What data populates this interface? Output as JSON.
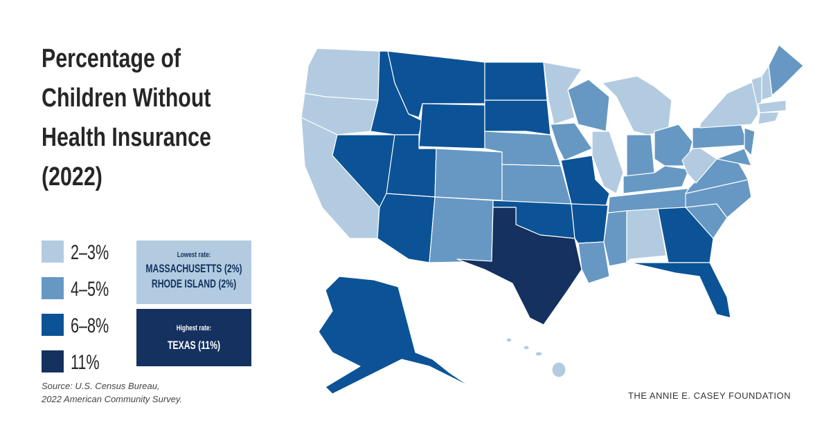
{
  "title_lines": [
    "Percentage of",
    "Children Without",
    "Health Insurance",
    "(2022)"
  ],
  "legend": {
    "items": [
      {
        "label": "2–3%",
        "color": "#b3cbe0"
      },
      {
        "label": "4–5%",
        "color": "#6698c3"
      },
      {
        "label": "6–8%",
        "color": "#0b5396"
      },
      {
        "label": "11%",
        "color": "#14315f"
      }
    ]
  },
  "lowest_box": {
    "heading": "Lowest rate:",
    "lines": [
      "MASSACHUSETTS (2%)",
      "RHODE ISLAND (2%)"
    ],
    "color": "#b3cbe0",
    "text_color": "#14315f"
  },
  "highest_box": {
    "heading": "Highest rate:",
    "lines": [
      "TEXAS (11%)"
    ],
    "color": "#14315f",
    "text_color": "#ffffff"
  },
  "source_lines": [
    "Source: U.S. Census Bureau,",
    "2022 American Community Survey."
  ],
  "footer": "THE ANNIE E. CASEY FOUNDATION"
}
